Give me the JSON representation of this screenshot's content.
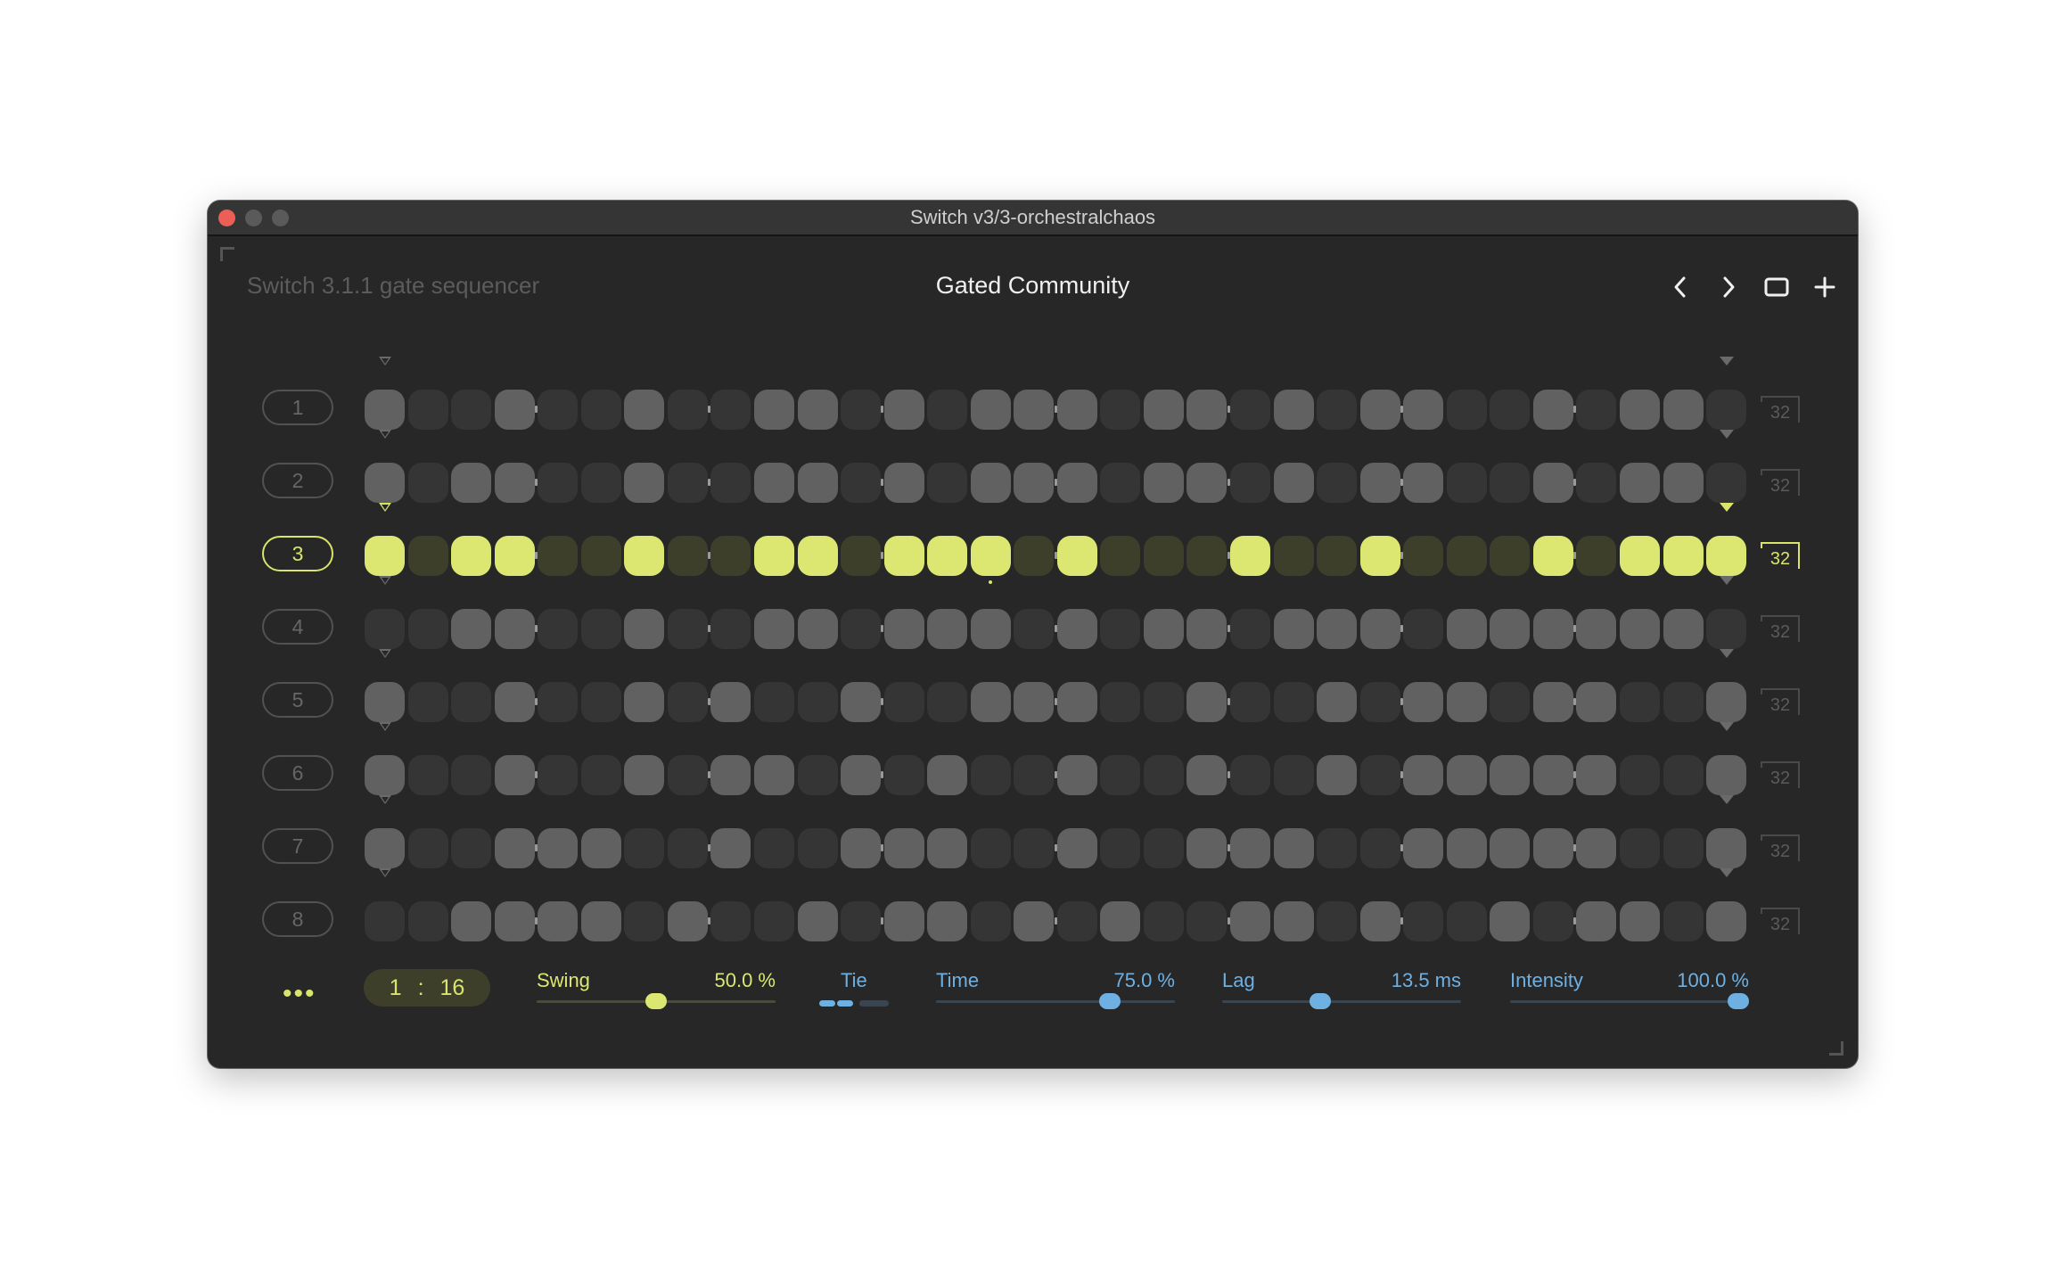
{
  "window": {
    "title": "Switch v3/3-orchestralchaos"
  },
  "header": {
    "device_name": "Switch 3.1.1 gate sequencer",
    "preset_name": "Gated Community",
    "nav": [
      "chevron-left-icon",
      "chevron-right-icon",
      "window-icon",
      "plus-icon"
    ]
  },
  "sequencer": {
    "active_row": 3,
    "playhead_step": 15,
    "rows": [
      {
        "label": "1",
        "length": "32",
        "steps": "10010010011010111011010110010110"
      },
      {
        "label": "2",
        "length": "32",
        "steps": "10110010011010111011010110010110"
      },
      {
        "label": "3",
        "length": "32",
        "steps": "10110010011011101000100100010111"
      },
      {
        "label": "4",
        "length": "32",
        "steps": "00110010011011101011011101111110"
      },
      {
        "label": "5",
        "length": "32",
        "steps": "10010010100100111001001011011001"
      },
      {
        "label": "6",
        "length": "32",
        "steps": "10010010110101001001001011111001"
      },
      {
        "label": "7",
        "length": "32",
        "steps": "10011100100111001001110011111001"
      },
      {
        "label": "8",
        "length": "32",
        "steps": "00111101001011010100110100101101"
      }
    ]
  },
  "footer": {
    "more": "•••",
    "rate": {
      "num": "1",
      "sep": ":",
      "den": "16"
    },
    "swing": {
      "label": "Swing",
      "value": "50.0 %",
      "level": 0.5
    },
    "tie": {
      "label": "Tie",
      "segments_on": 2,
      "segments_total": 3
    },
    "time": {
      "label": "Time",
      "value": "75.0 %",
      "level": 0.75
    },
    "lag": {
      "label": "Lag",
      "value": "13.5 ms",
      "level": 0.4
    },
    "intensity": {
      "label": "Intensity",
      "value": "100.0 %",
      "level": 1.0
    }
  },
  "colors": {
    "accent": "#dbe771",
    "accent_dim": "#3e3f2b",
    "blue": "#6fb0e2",
    "step_on": "#616161",
    "step_off": "#353535",
    "background": "#272727"
  }
}
